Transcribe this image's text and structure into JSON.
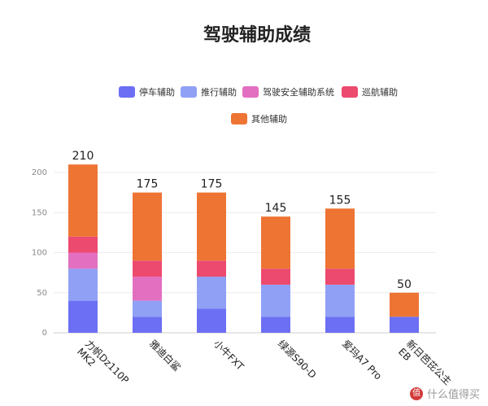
{
  "chart_data": {
    "type": "bar",
    "stacked": true,
    "title": "驾驶辅助成绩",
    "categories": [
      "力帆Dz110P MK2",
      "雅迪白鲨",
      "小牛FXT",
      "绿源S90-D",
      "爱玛A7 Pro",
      "新日芭芘公主EB"
    ],
    "category_lines": [
      [
        "力帆Dz110P",
        "MK2"
      ],
      [
        "雅迪白鲨"
      ],
      [
        "小牛FXT"
      ],
      [
        "绿源S90-D"
      ],
      [
        "爱玛A7 Pro"
      ],
      [
        "新日芭芘公主",
        "EB"
      ]
    ],
    "series": [
      {
        "name": "停车辅助",
        "color": "#6c6ff3",
        "values": [
          40,
          20,
          30,
          20,
          20,
          20
        ]
      },
      {
        "name": "推行辅助",
        "color": "#8fa0f5",
        "values": [
          40,
          20,
          40,
          40,
          40,
          0
        ]
      },
      {
        "name": "驾驶安全辅助系统",
        "color": "#e36fc1",
        "values": [
          20,
          30,
          0,
          0,
          0,
          0
        ]
      },
      {
        "name": "巡航辅助",
        "color": "#ec4a6e",
        "values": [
          20,
          20,
          20,
          20,
          20,
          0
        ]
      },
      {
        "name": "其他辅助",
        "color": "#ee7434",
        "values": [
          90,
          85,
          85,
          65,
          75,
          30
        ]
      }
    ],
    "totals": [
      210,
      175,
      175,
      145,
      155,
      50
    ],
    "y_ticks": [
      0,
      50,
      100,
      150,
      200
    ],
    "ylim": [
      0,
      210
    ],
    "grid": true,
    "legend_position": "top"
  },
  "watermark": {
    "logo_glyph": "值",
    "text": "什么值得买"
  }
}
